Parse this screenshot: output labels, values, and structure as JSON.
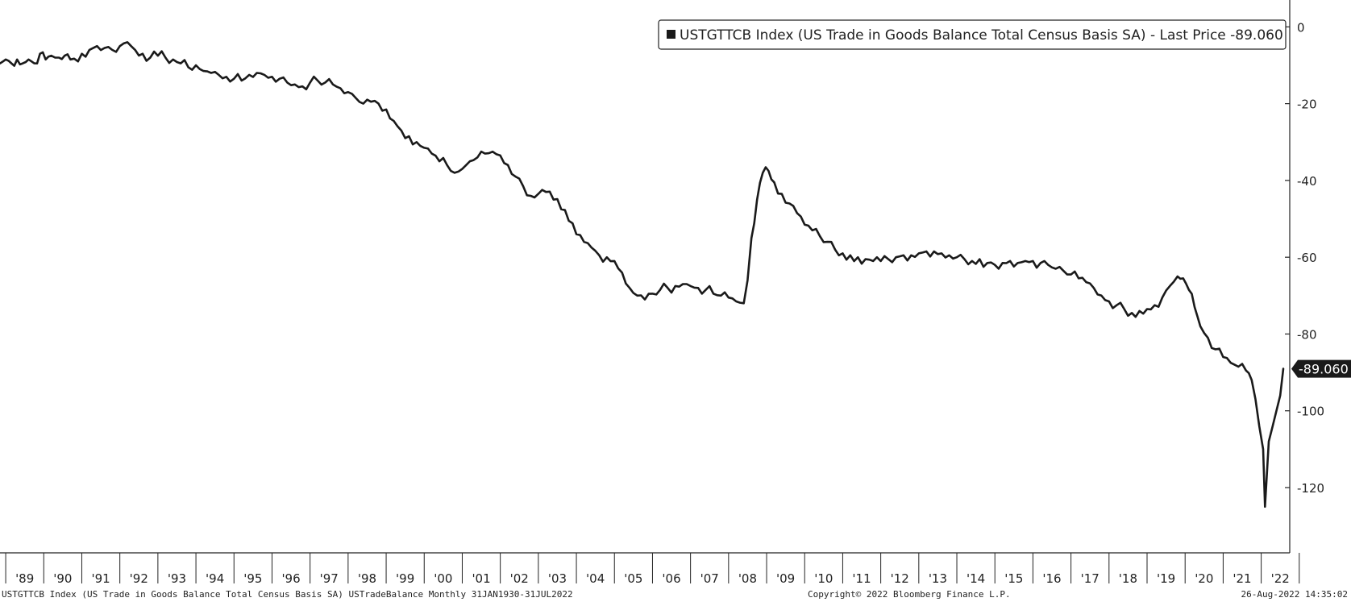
{
  "chart_data": {
    "type": "line",
    "ticker": "USTGTTCB Index",
    "legend_label": "USTGTTCB Index (US Trade in Goods Balance Total Census Basis SA) - Last Price -89.060",
    "last_value_label": "-89.060",
    "last_value": -89.06,
    "ylim": [
      -137,
      7
    ],
    "y_ticks": [
      0,
      -20,
      -40,
      -60,
      -80,
      -100,
      -120
    ],
    "y_tick_labels": [
      "0",
      "-20",
      "-40",
      "-60",
      "-80",
      "-100",
      "-120"
    ],
    "x_tick_labels": [
      "'89",
      "'90",
      "'91",
      "'92",
      "'93",
      "'94",
      "'95",
      "'96",
      "'97",
      "'98",
      "'99",
      "'00",
      "'01",
      "'02",
      "'03",
      "'04",
      "'05",
      "'06",
      "'07",
      "'08",
      "'09",
      "'10",
      "'11",
      "'12",
      "'13",
      "'14",
      "'15",
      "'16",
      "'17",
      "'18",
      "'19",
      "'20",
      "'21",
      "'22"
    ],
    "x_range": [
      1988.85,
      2022.75
    ],
    "legend_position": "top-right",
    "grid": false,
    "line_color": "#1a1a1a",
    "points": [
      [
        1988.85,
        -9.5
      ],
      [
        1989.0,
        -8.5
      ],
      [
        1989.15,
        -9.5
      ],
      [
        1989.3,
        -8.5
      ],
      [
        1989.45,
        -9.5
      ],
      [
        1989.6,
        -8.5
      ],
      [
        1989.75,
        -9.5
      ],
      [
        1989.9,
        -7.0
      ],
      [
        1990.05,
        -8.5
      ],
      [
        1990.2,
        -7.5
      ],
      [
        1990.4,
        -8.0
      ],
      [
        1990.55,
        -7.5
      ],
      [
        1990.7,
        -8.5
      ],
      [
        1990.9,
        -9.0
      ],
      [
        1991.0,
        -7.0
      ],
      [
        1991.2,
        -6.0
      ],
      [
        1991.4,
        -5.0
      ],
      [
        1991.6,
        -5.5
      ],
      [
        1991.8,
        -6.0
      ],
      [
        1992.0,
        -5.0
      ],
      [
        1992.2,
        -4.0
      ],
      [
        1992.4,
        -6.0
      ],
      [
        1992.6,
        -7.0
      ],
      [
        1992.8,
        -8.0
      ],
      [
        1993.0,
        -7.5
      ],
      [
        1993.2,
        -8.0
      ],
      [
        1993.4,
        -8.5
      ],
      [
        1993.6,
        -9.5
      ],
      [
        1993.8,
        -10.5
      ],
      [
        1994.0,
        -10.0
      ],
      [
        1994.2,
        -11.5
      ],
      [
        1994.4,
        -12.0
      ],
      [
        1994.6,
        -12.5
      ],
      [
        1994.8,
        -13.0
      ],
      [
        1995.0,
        -13.5
      ],
      [
        1995.2,
        -14.0
      ],
      [
        1995.4,
        -12.5
      ],
      [
        1995.6,
        -12.0
      ],
      [
        1995.8,
        -12.5
      ],
      [
        1996.0,
        -13.0
      ],
      [
        1996.2,
        -13.5
      ],
      [
        1996.4,
        -14.5
      ],
      [
        1996.6,
        -15.0
      ],
      [
        1996.8,
        -15.5
      ],
      [
        1997.0,
        -14.5
      ],
      [
        1997.2,
        -14.0
      ],
      [
        1997.4,
        -14.5
      ],
      [
        1997.6,
        -15.0
      ],
      [
        1997.8,
        -16.0
      ],
      [
        1998.0,
        -17.0
      ],
      [
        1998.2,
        -18.5
      ],
      [
        1998.4,
        -20.0
      ],
      [
        1998.6,
        -19.5
      ],
      [
        1998.8,
        -20.0
      ],
      [
        1999.0,
        -21.5
      ],
      [
        1999.2,
        -24.5
      ],
      [
        1999.4,
        -27.0
      ],
      [
        1999.6,
        -28.5
      ],
      [
        1999.8,
        -30.0
      ],
      [
        2000.0,
        -31.5
      ],
      [
        2000.2,
        -33.0
      ],
      [
        2000.4,
        -35.0
      ],
      [
        2000.6,
        -36.0
      ],
      [
        2000.8,
        -38.0
      ],
      [
        2001.0,
        -37.0
      ],
      [
        2001.2,
        -35.0
      ],
      [
        2001.4,
        -34.0
      ],
      [
        2001.6,
        -33.0
      ],
      [
        2001.8,
        -32.5
      ],
      [
        2002.0,
        -33.5
      ],
      [
        2002.2,
        -36.0
      ],
      [
        2002.4,
        -39.0
      ],
      [
        2002.6,
        -41.5
      ],
      [
        2002.8,
        -44.0
      ],
      [
        2003.0,
        -43.5
      ],
      [
        2003.2,
        -43.0
      ],
      [
        2003.4,
        -45.0
      ],
      [
        2003.6,
        -47.5
      ],
      [
        2003.8,
        -50.5
      ],
      [
        2004.0,
        -54.0
      ],
      [
        2004.2,
        -56.0
      ],
      [
        2004.4,
        -57.5
      ],
      [
        2004.6,
        -59.5
      ],
      [
        2004.8,
        -60.0
      ],
      [
        2005.0,
        -61.0
      ],
      [
        2005.2,
        -64.0
      ],
      [
        2005.4,
        -68.0
      ],
      [
        2005.6,
        -70.0
      ],
      [
        2005.8,
        -71.0
      ],
      [
        2006.0,
        -69.5
      ],
      [
        2006.2,
        -68.5
      ],
      [
        2006.4,
        -68.0
      ],
      [
        2006.6,
        -67.5
      ],
      [
        2006.8,
        -67.0
      ],
      [
        2007.0,
        -67.5
      ],
      [
        2007.2,
        -68.0
      ],
      [
        2007.4,
        -68.5
      ],
      [
        2007.6,
        -69.5
      ],
      [
        2007.8,
        -70.0
      ],
      [
        2008.0,
        -70.5
      ],
      [
        2008.2,
        -71.5
      ],
      [
        2008.4,
        -72.0
      ],
      [
        2008.5,
        -66.0
      ],
      [
        2008.6,
        -55.0
      ],
      [
        2008.75,
        -45.0
      ],
      [
        2008.9,
        -38.0
      ],
      [
        2009.05,
        -37.5
      ],
      [
        2009.2,
        -40.5
      ],
      [
        2009.4,
        -43.5
      ],
      [
        2009.6,
        -46.0
      ],
      [
        2009.8,
        -48.5
      ],
      [
        2010.0,
        -51.5
      ],
      [
        2010.2,
        -53.0
      ],
      [
        2010.4,
        -54.5
      ],
      [
        2010.6,
        -56.0
      ],
      [
        2010.8,
        -58.0
      ],
      [
        2011.0,
        -59.0
      ],
      [
        2011.2,
        -59.5
      ],
      [
        2011.4,
        -60.0
      ],
      [
        2011.6,
        -60.5
      ],
      [
        2011.8,
        -61.0
      ],
      [
        2012.0,
        -61.0
      ],
      [
        2012.2,
        -60.5
      ],
      [
        2012.4,
        -60.0
      ],
      [
        2012.6,
        -59.5
      ],
      [
        2012.8,
        -59.5
      ],
      [
        2013.0,
        -59.0
      ],
      [
        2013.2,
        -58.5
      ],
      [
        2013.4,
        -58.5
      ],
      [
        2013.6,
        -59.0
      ],
      [
        2013.8,
        -59.5
      ],
      [
        2014.0,
        -60.0
      ],
      [
        2014.2,
        -60.5
      ],
      [
        2014.4,
        -61.0
      ],
      [
        2014.6,
        -60.5
      ],
      [
        2014.8,
        -61.5
      ],
      [
        2015.0,
        -62.0
      ],
      [
        2015.2,
        -61.5
      ],
      [
        2015.4,
        -61.0
      ],
      [
        2015.6,
        -61.5
      ],
      [
        2015.8,
        -61.0
      ],
      [
        2016.0,
        -61.0
      ],
      [
        2016.2,
        -61.5
      ],
      [
        2016.4,
        -62.0
      ],
      [
        2016.6,
        -63.0
      ],
      [
        2016.8,
        -63.5
      ],
      [
        2017.0,
        -64.5
      ],
      [
        2017.2,
        -65.5
      ],
      [
        2017.4,
        -66.5
      ],
      [
        2017.6,
        -68.0
      ],
      [
        2017.8,
        -70.0
      ],
      [
        2018.0,
        -71.5
      ],
      [
        2018.2,
        -72.5
      ],
      [
        2018.4,
        -73.5
      ],
      [
        2018.6,
        -74.5
      ],
      [
        2018.8,
        -74.0
      ],
      [
        2019.0,
        -73.5
      ],
      [
        2019.2,
        -72.5
      ],
      [
        2019.4,
        -70.5
      ],
      [
        2019.6,
        -67.5
      ],
      [
        2019.8,
        -65.0
      ],
      [
        2019.95,
        -65.5
      ],
      [
        2020.1,
        -68.5
      ],
      [
        2020.25,
        -73.0
      ],
      [
        2020.4,
        -78.0
      ],
      [
        2020.6,
        -81.0
      ],
      [
        2020.8,
        -84.0
      ],
      [
        2021.0,
        -86.0
      ],
      [
        2021.2,
        -87.5
      ],
      [
        2021.4,
        -88.5
      ],
      [
        2021.6,
        -89.5
      ],
      [
        2021.75,
        -92.0
      ],
      [
        2021.85,
        -97.0
      ],
      [
        2021.95,
        -104.0
      ],
      [
        2022.05,
        -110.0
      ],
      [
        2022.1,
        -125.0
      ],
      [
        2022.2,
        -108.0
      ],
      [
        2022.3,
        -104.0
      ],
      [
        2022.4,
        -100.0
      ],
      [
        2022.5,
        -96.0
      ],
      [
        2022.58,
        -89.06
      ]
    ]
  },
  "footer": {
    "left": "USTGTTCB Index (US Trade in Goods Balance Total Census Basis SA) USTradeBalance  Monthly 31JAN1930-31JUL2022",
    "center": "Copyright© 2022 Bloomberg Finance L.P.",
    "right": "26-Aug-2022 14:35:02"
  }
}
